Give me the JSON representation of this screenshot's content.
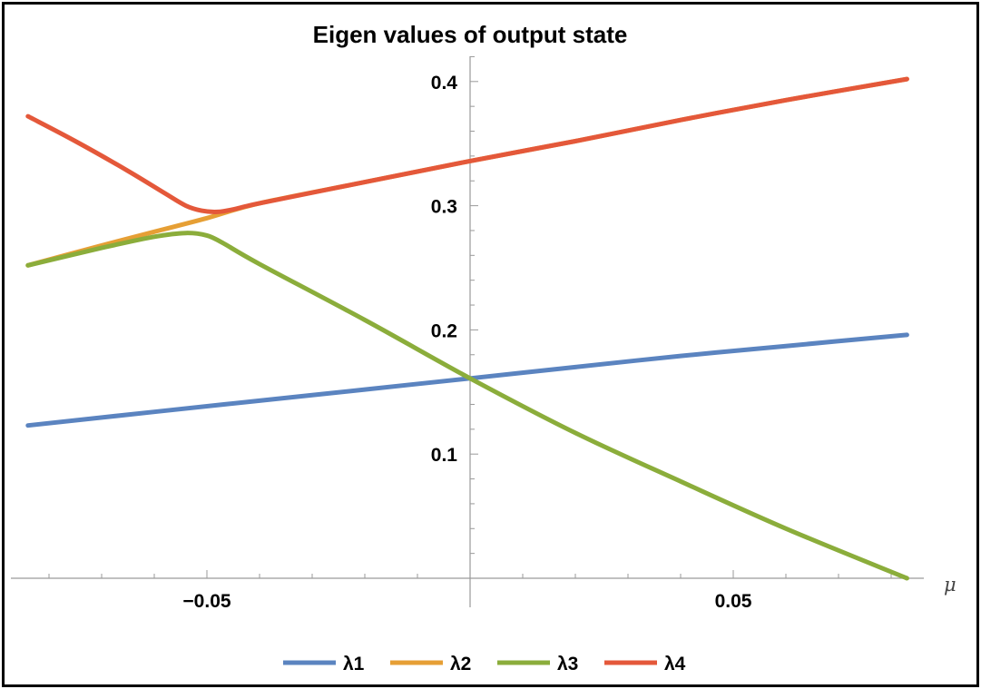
{
  "chart_data": {
    "type": "line",
    "title": "Eigen values of output state",
    "xlabel": "μ",
    "ylabel": "",
    "xlim": [
      -0.085,
      0.085
    ],
    "ylim": [
      0,
      0.43
    ],
    "x_ticks": [
      -0.05,
      0.05
    ],
    "x_tick_labels": [
      "-0.05",
      "0.05"
    ],
    "y_ticks": [
      0.1,
      0.2,
      0.3,
      0.4
    ],
    "y_tick_labels": [
      "0.1",
      "0.2",
      "0.3",
      "0.4"
    ],
    "legend_position": "bottom",
    "grid": false,
    "series": [
      {
        "name": "λ1",
        "color": "#5b84c0",
        "x": [
          -0.084,
          -0.06,
          -0.04,
          -0.02,
          0.0,
          0.02,
          0.04,
          0.06,
          0.083
        ],
        "y": [
          0.123,
          0.134,
          0.143,
          0.152,
          0.161,
          0.17,
          0.179,
          0.187,
          0.196
        ]
      },
      {
        "name": "λ2",
        "color": "#e69f35",
        "x": [
          -0.084,
          -0.07,
          -0.06,
          -0.05,
          -0.04,
          -0.02,
          0.0,
          0.02,
          0.04,
          0.06,
          0.083
        ],
        "y": [
          0.252,
          0.268,
          0.279,
          0.29,
          0.302,
          0.319,
          0.336,
          0.352,
          0.369,
          0.385,
          0.402
        ]
      },
      {
        "name": "λ3",
        "color": "#8bad3b",
        "x": [
          -0.084,
          -0.07,
          -0.06,
          -0.054,
          -0.05,
          -0.047,
          -0.04,
          -0.02,
          0.0,
          0.02,
          0.04,
          0.06,
          0.083
        ],
        "y": [
          0.252,
          0.266,
          0.275,
          0.278,
          0.276,
          0.27,
          0.253,
          0.208,
          0.161,
          0.117,
          0.078,
          0.04,
          0.0
        ]
      },
      {
        "name": "λ4",
        "color": "#e4583a",
        "x": [
          -0.084,
          -0.075,
          -0.065,
          -0.058,
          -0.054,
          -0.051,
          -0.048,
          -0.045,
          -0.04,
          -0.02,
          0.0,
          0.02,
          0.04,
          0.06,
          0.083
        ],
        "y": [
          0.372,
          0.352,
          0.328,
          0.31,
          0.3,
          0.296,
          0.295,
          0.297,
          0.302,
          0.319,
          0.336,
          0.352,
          0.369,
          0.385,
          0.402
        ]
      }
    ]
  }
}
